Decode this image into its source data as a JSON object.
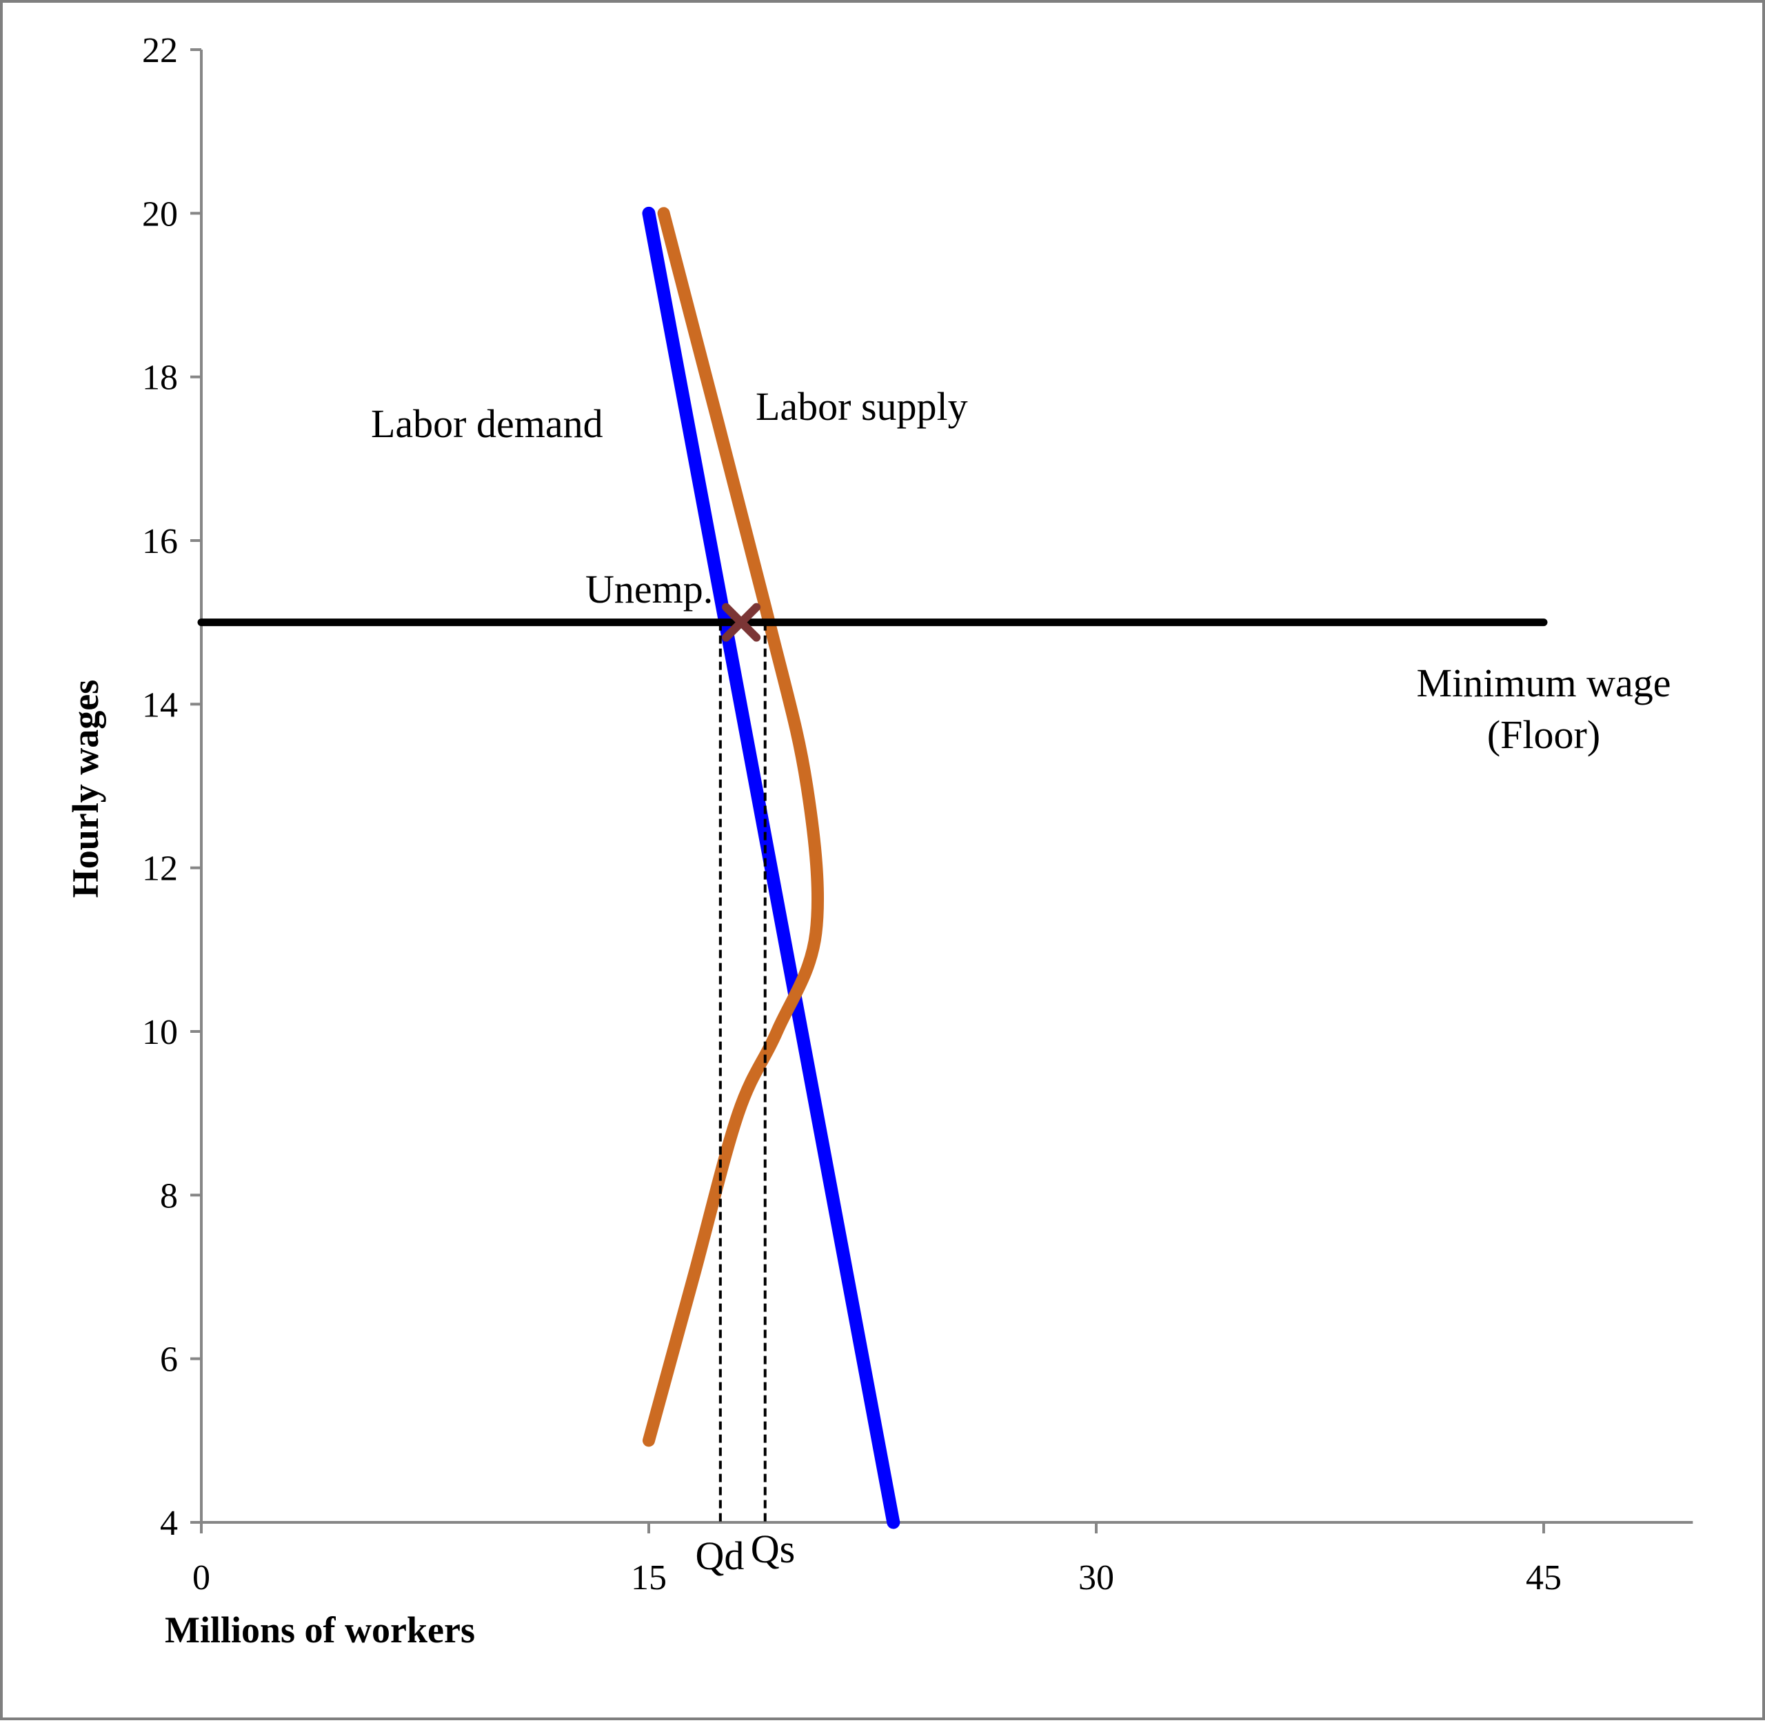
{
  "chart_data": {
    "type": "line",
    "xlabel": "Millions of workers",
    "ylabel": "Hourly wages",
    "xlim": [
      0,
      50
    ],
    "ylim": [
      4,
      22
    ],
    "x_ticks": [
      0,
      15,
      30,
      45
    ],
    "y_ticks": [
      4,
      6,
      8,
      10,
      12,
      14,
      16,
      18,
      20,
      22
    ],
    "grid": false,
    "legend": "none",
    "series": [
      {
        "name": "Labor demand",
        "color": "#0000ff",
        "points": [
          [
            15,
            20
          ],
          [
            23.2,
            4
          ]
        ]
      },
      {
        "name": "Labor supply",
        "color": "#cc6b22",
        "points": [
          [
            15,
            5
          ],
          [
            16.5,
            7
          ],
          [
            18.0,
            9
          ],
          [
            19.3,
            10
          ],
          [
            20.6,
            11.2
          ],
          [
            20.3,
            13
          ],
          [
            18.9,
            15.2
          ],
          [
            15.5,
            20
          ]
        ]
      },
      {
        "name": "Minimum wage",
        "color": "#000000",
        "points": [
          [
            0,
            15
          ],
          [
            45,
            15
          ]
        ]
      }
    ],
    "annotations": {
      "labor_demand": "Labor demand",
      "labor_supply": "Labor supply",
      "unemployment": "Unemp.",
      "minimum_wage_line1": "Minimum wage",
      "minimum_wage_line2": "(Floor)",
      "qd": "Qd",
      "qs": "Qs"
    },
    "qd_x": 17.4,
    "qs_x": 18.9,
    "floor_wage": 15,
    "marker": {
      "x": 18.1,
      "y": 15,
      "color": "#7b3535",
      "shape": "x"
    }
  }
}
